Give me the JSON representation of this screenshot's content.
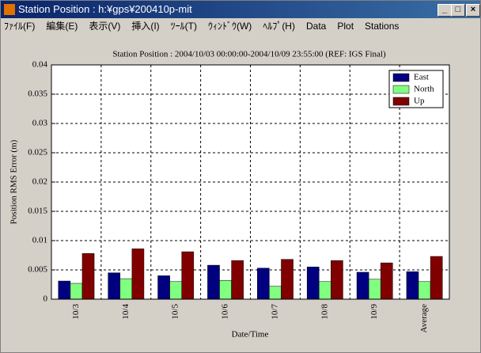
{
  "window": {
    "title": "Station Position : h:¥gps¥200410p-mit",
    "menu": [
      "ﾌｧｲﾙ(F)",
      "編集(E)",
      "表示(V)",
      "挿入(I)",
      "ﾂｰﾙ(T)",
      "ｳｨﾝﾄﾞｳ(W)",
      "ﾍﾙﾌﾟ(H)",
      "Data",
      "Plot",
      "Stations"
    ]
  },
  "chart_data": {
    "type": "bar",
    "title": "Station Position : 2004/10/03 00:00:00-2004/10/09 23:55:00 (REF: IGS Final)",
    "x_label": "Date/Time",
    "y_label": "Position RMS Error (m)",
    "categories": [
      "10/3",
      "10/4",
      "10/5",
      "10/6",
      "10/7",
      "10/8",
      "10/9",
      "Average"
    ],
    "series": [
      {
        "name": "East",
        "color": "#000080",
        "values": [
          0.0031,
          0.0045,
          0.004,
          0.0058,
          0.0053,
          0.0055,
          0.0046,
          0.0047
        ]
      },
      {
        "name": "North",
        "color": "#80ff80",
        "values": [
          0.0027,
          0.0035,
          0.003,
          0.0032,
          0.0022,
          0.003,
          0.0034,
          0.003
        ]
      },
      {
        "name": "Up",
        "color": "#800000",
        "values": [
          0.0078,
          0.0086,
          0.0081,
          0.0066,
          0.0068,
          0.0066,
          0.0062,
          0.0073
        ]
      }
    ],
    "ylim": [
      0,
      0.04
    ],
    "yticks": [
      0,
      0.005,
      0.01,
      0.015,
      0.02,
      0.025,
      0.03,
      0.035,
      0.04
    ],
    "grid": true,
    "legend": "top-right"
  }
}
